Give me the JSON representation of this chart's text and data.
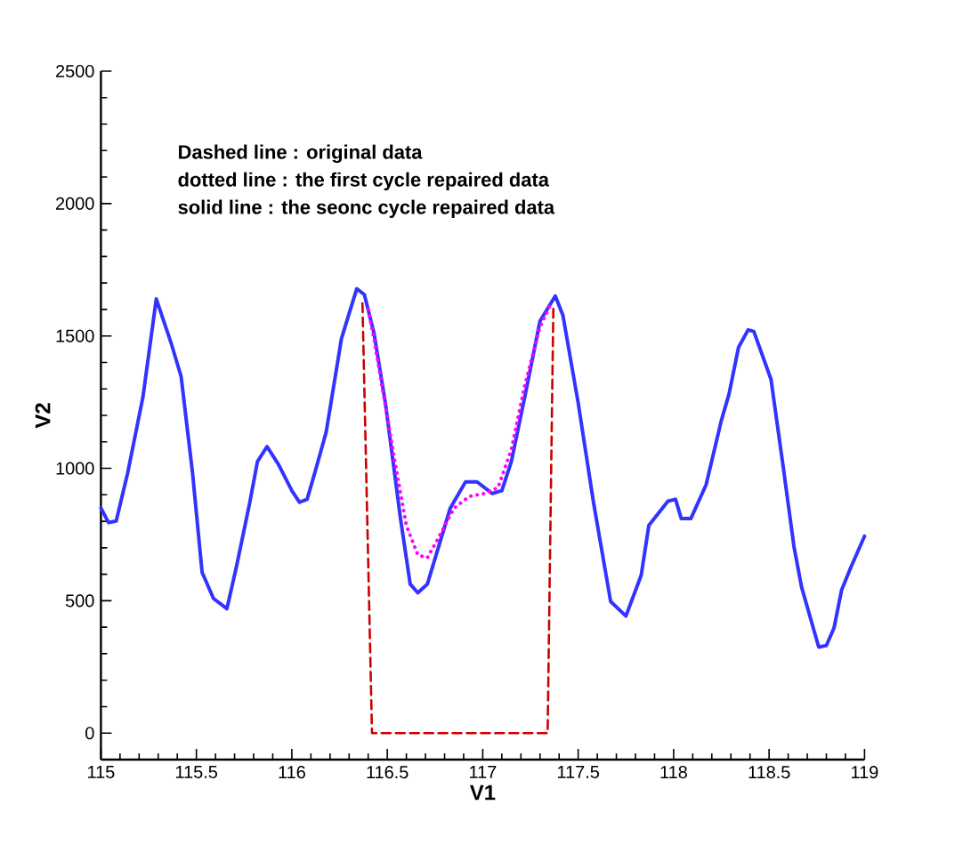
{
  "chart_data": {
    "type": "line",
    "xlabel": "V1",
    "ylabel": "V2",
    "xlim": [
      115,
      119
    ],
    "ylim": [
      -100,
      2500
    ],
    "xticks": [
      115,
      {
        "value": 115.5,
        "label": "115.5"
      },
      116,
      {
        "value": 116.5,
        "label": "116.5"
      },
      117,
      {
        "value": 117.5,
        "label": "117.5"
      },
      118,
      {
        "value": 118.5,
        "label": "118.5"
      },
      119
    ],
    "yticks": [
      0,
      500,
      1000,
      1500,
      2000,
      2500
    ],
    "grid": false,
    "marker": "none",
    "annotations": [
      "Dashed line : original data",
      "dotted line    : the first cycle repaired data",
      "solid  line      : the seonc cycle repaired data"
    ],
    "series": [
      {
        "color": "#cc0000",
        "line_style": "dashed",
        "x": [
          116.37,
          116.42,
          117.34,
          117.37
        ],
        "values": [
          1623,
          0,
          0,
          1611
        ]
      },
      {
        "color": "#ff00ff",
        "line_style": "dotted",
        "x": [
          116.4,
          116.43,
          116.49,
          116.54,
          116.6,
          116.66,
          116.71,
          116.77,
          116.85,
          116.93,
          117.01,
          117.08,
          117.15,
          117.22,
          117.3,
          117.35
        ],
        "values": [
          1600,
          1490,
          1236,
          1026,
          784,
          673,
          662,
          740,
          850,
          894,
          905,
          927,
          1071,
          1313,
          1534,
          1611
        ]
      },
      {
        "color": "#3333ff",
        "line_style": "solid",
        "x": [
          115.0,
          115.04,
          115.08,
          115.14,
          115.22,
          115.29,
          115.37,
          115.42,
          115.48,
          115.53,
          115.59,
          115.66,
          115.71,
          115.78,
          115.82,
          115.87,
          115.93,
          116.0,
          116.04,
          116.08,
          116.12,
          116.18,
          116.26,
          116.34,
          116.38,
          116.43,
          116.49,
          116.57,
          116.62,
          116.66,
          116.71,
          116.83,
          116.91,
          116.97,
          117.05,
          117.1,
          117.15,
          117.22,
          117.3,
          117.38,
          117.42,
          117.5,
          117.58,
          117.67,
          117.75,
          117.83,
          117.87,
          117.97,
          118.01,
          118.04,
          118.09,
          118.17,
          118.25,
          118.29,
          118.34,
          118.39,
          118.42,
          118.51,
          118.57,
          118.63,
          118.67,
          118.76,
          118.8,
          118.84,
          118.88,
          118.93,
          119.0
        ],
        "values": [
          850,
          795,
          801,
          982,
          1269,
          1640,
          1468,
          1347,
          982,
          607,
          508,
          470,
          629,
          872,
          1026,
          1082,
          1015,
          916,
          872,
          883,
          982,
          1137,
          1490,
          1678,
          1656,
          1512,
          1247,
          806,
          563,
          530,
          563,
          850,
          949,
          949,
          905,
          916,
          1026,
          1269,
          1556,
          1651,
          1578,
          1247,
          872,
          497,
          442,
          596,
          784,
          876,
          883,
          810,
          810,
          938,
          1181,
          1280,
          1457,
          1523,
          1517,
          1336,
          1026,
          706,
          552,
          325,
          331,
          397,
          541,
          629,
          744
        ]
      }
    ]
  }
}
